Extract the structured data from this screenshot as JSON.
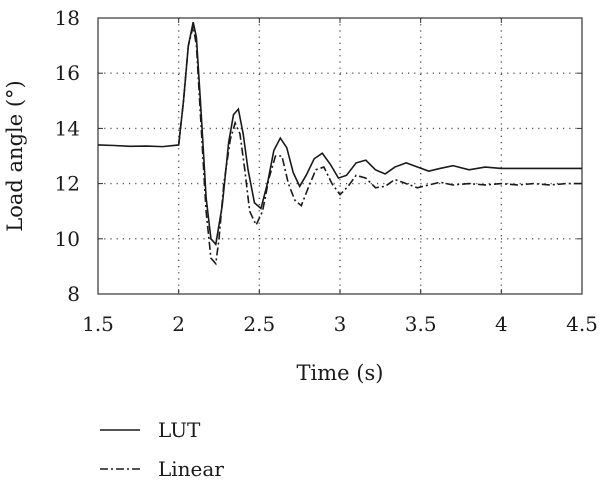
{
  "chart_data": {
    "type": "line",
    "xlabel": "Time (s)",
    "ylabel": "Load angle (°)",
    "xlim": [
      1.5,
      4.5
    ],
    "ylim": [
      8,
      18
    ],
    "xticks": [
      "1.5",
      "2",
      "2.5",
      "3",
      "3.5",
      "4",
      "4.5"
    ],
    "yticks": [
      "8",
      "10",
      "12",
      "14",
      "16",
      "18"
    ],
    "grid": true,
    "legend_position": "bottom-left, below plot",
    "series": [
      {
        "name": "LUT",
        "style": "solid",
        "x": [
          1.5,
          1.6,
          1.7,
          1.8,
          1.9,
          2.0,
          2.03,
          2.06,
          2.09,
          2.11,
          2.14,
          2.17,
          2.2,
          2.23,
          2.27,
          2.31,
          2.34,
          2.37,
          2.4,
          2.43,
          2.47,
          2.51,
          2.55,
          2.59,
          2.63,
          2.67,
          2.71,
          2.75,
          2.79,
          2.84,
          2.89,
          2.94,
          2.99,
          3.04,
          3.1,
          3.16,
          3.22,
          3.28,
          3.34,
          3.41,
          3.48,
          3.55,
          3.62,
          3.7,
          3.8,
          3.9,
          4.0,
          4.1,
          4.2,
          4.3,
          4.4,
          4.5
        ],
        "y": [
          13.4,
          13.38,
          13.35,
          13.36,
          13.34,
          13.4,
          15.0,
          17.0,
          17.85,
          17.3,
          14.5,
          11.5,
          10.0,
          9.8,
          11.2,
          13.5,
          14.5,
          14.7,
          13.8,
          12.5,
          11.3,
          11.1,
          12.0,
          13.2,
          13.65,
          13.3,
          12.4,
          11.9,
          12.3,
          12.9,
          13.1,
          12.7,
          12.2,
          12.3,
          12.75,
          12.85,
          12.5,
          12.35,
          12.6,
          12.75,
          12.6,
          12.45,
          12.55,
          12.65,
          12.5,
          12.6,
          12.55,
          12.55,
          12.55,
          12.55,
          12.55,
          12.55
        ]
      },
      {
        "name": "Linear",
        "style": "dash-dot",
        "x": [
          2.0,
          2.03,
          2.06,
          2.09,
          2.11,
          2.14,
          2.17,
          2.2,
          2.23,
          2.25,
          2.28,
          2.32,
          2.35,
          2.38,
          2.41,
          2.44,
          2.48,
          2.52,
          2.56,
          2.6,
          2.64,
          2.68,
          2.72,
          2.76,
          2.8,
          2.85,
          2.9,
          2.95,
          3.0,
          3.05,
          3.1,
          3.16,
          3.22,
          3.28,
          3.34,
          3.41,
          3.48,
          3.55,
          3.62,
          3.7,
          3.8,
          3.9,
          4.0,
          4.1,
          4.2,
          4.3,
          4.4,
          4.5
        ],
        "y": [
          13.4,
          15.0,
          17.0,
          17.7,
          17.0,
          14.0,
          11.0,
          9.3,
          9.1,
          10.0,
          12.0,
          13.6,
          14.2,
          13.8,
          12.5,
          11.0,
          10.5,
          11.0,
          12.2,
          13.0,
          13.0,
          12.0,
          11.4,
          11.2,
          11.8,
          12.5,
          12.6,
          12.0,
          11.6,
          11.9,
          12.3,
          12.2,
          11.85,
          11.9,
          12.15,
          12.0,
          11.85,
          11.95,
          12.05,
          11.95,
          12.0,
          11.95,
          12.0,
          11.95,
          12.0,
          11.95,
          12.0,
          12.0
        ]
      }
    ]
  }
}
